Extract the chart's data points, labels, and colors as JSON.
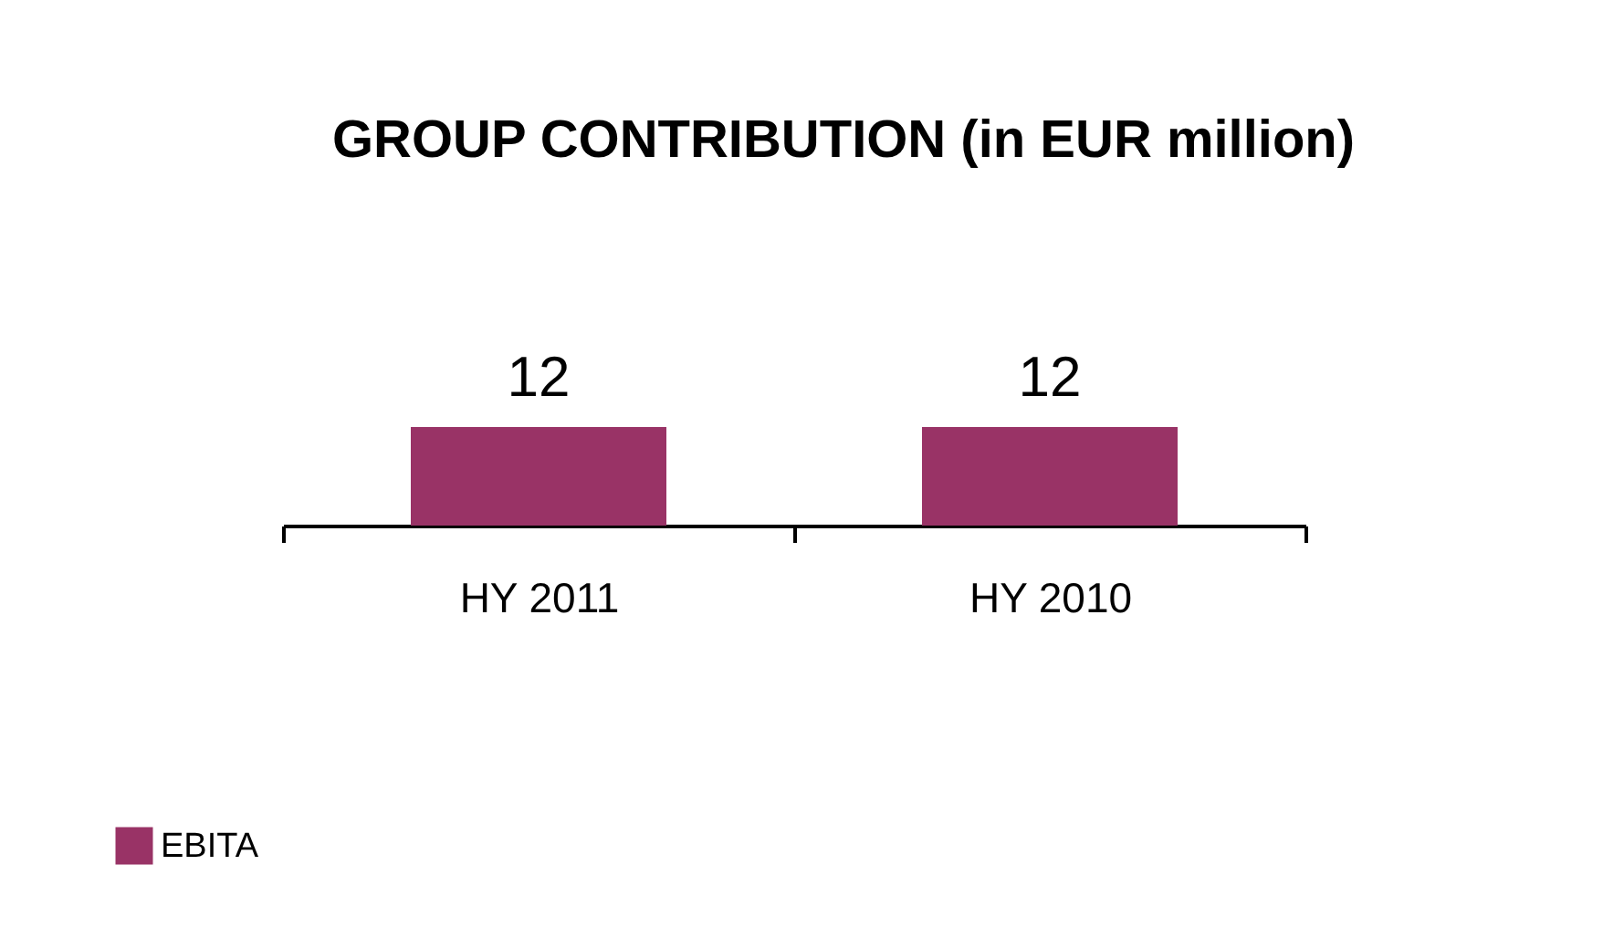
{
  "chart_data": {
    "type": "bar",
    "title": "GROUP CONTRIBUTION (in EUR million)",
    "categories": [
      "HY 2011",
      "HY 2010"
    ],
    "series": [
      {
        "name": "EBITA",
        "color": "#993366",
        "values": [
          12,
          12
        ]
      }
    ],
    "data_labels": true,
    "legend": "bottom left"
  }
}
